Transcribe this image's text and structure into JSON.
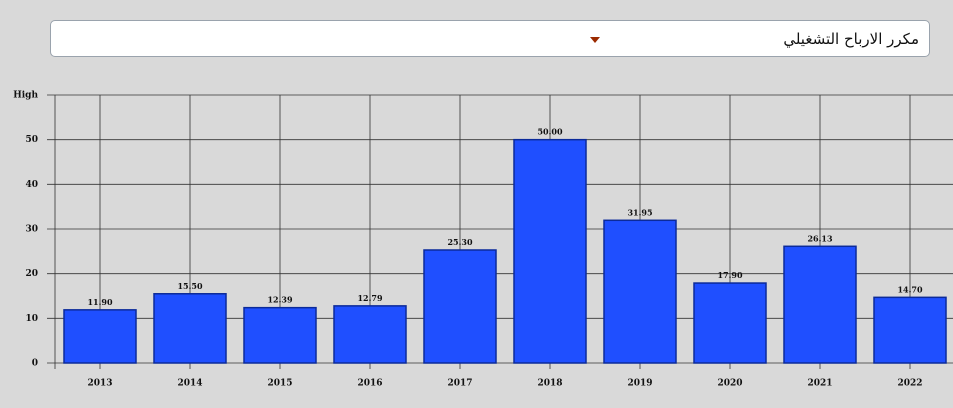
{
  "dropdown": {
    "selected": "مكرر الارباح التشغيلي"
  },
  "chart_data": {
    "type": "bar",
    "categories": [
      "2013",
      "2014",
      "2015",
      "2016",
      "2017",
      "2018",
      "2019",
      "2020",
      "2021",
      "2022"
    ],
    "values": [
      11.9,
      15.5,
      12.39,
      12.79,
      25.3,
      50,
      31.95,
      17.9,
      26.13,
      14.7
    ],
    "value_labels": [
      "11.90",
      "15.50",
      "12.39",
      "12.79",
      "25.30",
      "50.00",
      "31.95",
      "17.90",
      "26.13",
      "14.70"
    ],
    "color": "#1f4fff",
    "ylim": [
      0,
      60
    ],
    "yticks": [
      0,
      10,
      20,
      30,
      40,
      50,
      {
        "value": 60,
        "label": "High"
      }
    ],
    "grid": true
  }
}
